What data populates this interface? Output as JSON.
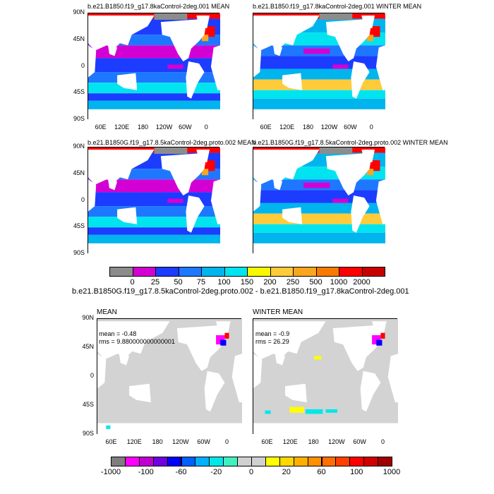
{
  "top": {
    "panels": [
      {
        "title": "b.e21.B1850.f19_g17.8kaControl-2deg.001 MEAN",
        "right_label": "",
        "kind": "mean"
      },
      {
        "title": "b.e21.B1850.f19_g17.8kaControl-2deg.001 WINTER MEAN",
        "right_label": "",
        "kind": "winter"
      },
      {
        "title": "b.e21.B1850G.f19_g17.8.5kaControl-2deg.proto.002 MEAN",
        "right_label": "",
        "kind": "mean"
      },
      {
        "title": "b.e21.B1850G.f19_g17.8.5kaControl-2deg.proto.002 WINTER MEAN",
        "right_label": "",
        "kind": "winter"
      }
    ],
    "lat_labels": [
      "90N",
      "45N",
      "0",
      "45S",
      "90S"
    ],
    "lon_labels": [
      "60E",
      "120E",
      "180",
      "120W",
      "60W",
      "0"
    ],
    "colorbar": {
      "colors": [
        "#8c8c8c",
        "#d300d3",
        "#1c3cff",
        "#1e78ff",
        "#00b4ee",
        "#00e4f0",
        "#f8f800",
        "#ffcb3a",
        "#f9a520",
        "#f87a00",
        "#ff0000",
        "#c80000"
      ],
      "labels": [
        "0",
        "25",
        "50",
        "75",
        "100",
        "150",
        "200",
        "250",
        "500",
        "1000",
        "2000"
      ]
    },
    "diff_title": "b.e21.B1850G.f19_g17.8.5kaControl-2deg.proto.002 - b.e21.B1850.f19_g17.8kaControl-2deg.001"
  },
  "bottom": {
    "panels": [
      {
        "title": "MEAN",
        "mean_text": "mean = -0.48",
        "rms_text": "rms = 9.880000000000001",
        "kind": "mean"
      },
      {
        "title": "WINTER MEAN",
        "mean_text": "mean = -0.9",
        "rms_text": "rms = 26.29",
        "kind": "winter"
      }
    ],
    "lat_labels": [
      "90N",
      "45N",
      "0",
      "45S",
      "90S"
    ],
    "lon_labels": [
      "60E",
      "120E",
      "180",
      "120W",
      "60W",
      "0"
    ],
    "colorbar": {
      "colors": [
        "#7e7e7e",
        "#ff00ff",
        "#c000d0",
        "#7000e0",
        "#0000ff",
        "#0060ff",
        "#00b0ff",
        "#00e8e8",
        "#40f0c0",
        "#d0d0d0",
        "#d0d0d0",
        "#ffff00",
        "#ffd800",
        "#ffb000",
        "#ff9000",
        "#ff7000",
        "#ff4000",
        "#ff0000",
        "#d00000",
        "#a00000"
      ],
      "labels": [
        "-1000",
        "-100",
        "-60",
        "-20",
        "0",
        "20",
        "60",
        "100",
        "1000"
      ]
    }
  },
  "chart_data": [
    {
      "type": "heatmap",
      "title": "b.e21.B1850.f19_g17.8kaControl-2deg.001 MEAN",
      "x_ticks": [
        "60E",
        "120E",
        "180",
        "120W",
        "60W",
        "0"
      ],
      "y_ticks": [
        "90N",
        "45N",
        "0",
        "45S",
        "90S"
      ],
      "colorbar_levels": [
        0,
        25,
        50,
        75,
        100,
        150,
        200,
        250,
        500,
        1000,
        2000
      ]
    },
    {
      "type": "heatmap",
      "title": "b.e21.B1850.f19_g17.8kaControl-2deg.001 WINTER MEAN",
      "x_ticks": [
        "60E",
        "120E",
        "180",
        "120W",
        "60W",
        "0"
      ],
      "y_ticks": [
        "90N",
        "45N",
        "0",
        "45S",
        "90S"
      ],
      "colorbar_levels": [
        0,
        25,
        50,
        75,
        100,
        150,
        200,
        250,
        500,
        1000,
        2000
      ]
    },
    {
      "type": "heatmap",
      "title": "b.e21.B1850G.f19_g17.8.5kaControl-2deg.proto.002 MEAN",
      "x_ticks": [
        "60E",
        "120E",
        "180",
        "120W",
        "60W",
        "0"
      ],
      "y_ticks": [
        "90N",
        "45N",
        "0",
        "45S",
        "90S"
      ],
      "colorbar_levels": [
        0,
        25,
        50,
        75,
        100,
        150,
        200,
        250,
        500,
        1000,
        2000
      ]
    },
    {
      "type": "heatmap",
      "title": "b.e21.B1850G.f19_g17.8.5kaControl-2deg.proto.002 WINTER MEAN",
      "x_ticks": [
        "60E",
        "120E",
        "180",
        "120W",
        "60W",
        "0"
      ],
      "y_ticks": [
        "90N",
        "45N",
        "0",
        "45S",
        "90S"
      ],
      "colorbar_levels": [
        0,
        25,
        50,
        75,
        100,
        150,
        200,
        250,
        500,
        1000,
        2000
      ]
    },
    {
      "type": "heatmap",
      "title": "MEAN",
      "annotations": [
        "mean = -0.48",
        "rms = 9.880000000000001"
      ],
      "x_ticks": [
        "60E",
        "120E",
        "180",
        "120W",
        "60W",
        "0"
      ],
      "y_ticks": [
        "90N",
        "45N",
        "0",
        "45S",
        "90S"
      ],
      "colorbar_levels": [
        -1000,
        -100,
        -60,
        -20,
        0,
        20,
        60,
        100,
        1000
      ]
    },
    {
      "type": "heatmap",
      "title": "WINTER MEAN",
      "annotations": [
        "mean = -0.9",
        "rms = 26.29"
      ],
      "x_ticks": [
        "60E",
        "120E",
        "180",
        "120W",
        "60W",
        "0"
      ],
      "y_ticks": [
        "90N",
        "45N",
        "0",
        "45S",
        "90S"
      ],
      "colorbar_levels": [
        -1000,
        -100,
        -60,
        -20,
        0,
        20,
        60,
        100,
        1000
      ]
    }
  ]
}
